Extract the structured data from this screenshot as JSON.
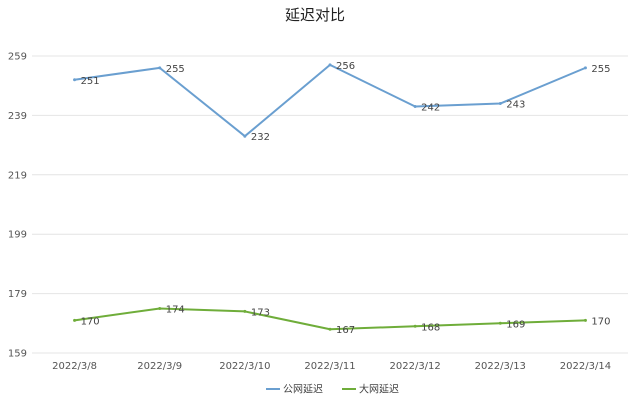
{
  "chart_data": {
    "type": "line",
    "title": "延迟对比",
    "categories": [
      "2022/3/8",
      "2022/3/9",
      "2022/3/10",
      "2022/3/11",
      "2022/3/12",
      "2022/3/13",
      "2022/3/14"
    ],
    "series": [
      {
        "name": "公网延迟",
        "values": [
          251,
          255,
          232,
          256,
          242,
          243,
          255
        ],
        "color": "#6a9fd0"
      },
      {
        "name": "大网延迟",
        "values": [
          170,
          174,
          173,
          167,
          168,
          169,
          170
        ],
        "color": "#6fad3a"
      }
    ],
    "yticks": [
      159,
      179,
      199,
      219,
      239,
      259
    ],
    "ylim": [
      159,
      259
    ],
    "grid": true,
    "legend": "bottom-center"
  }
}
